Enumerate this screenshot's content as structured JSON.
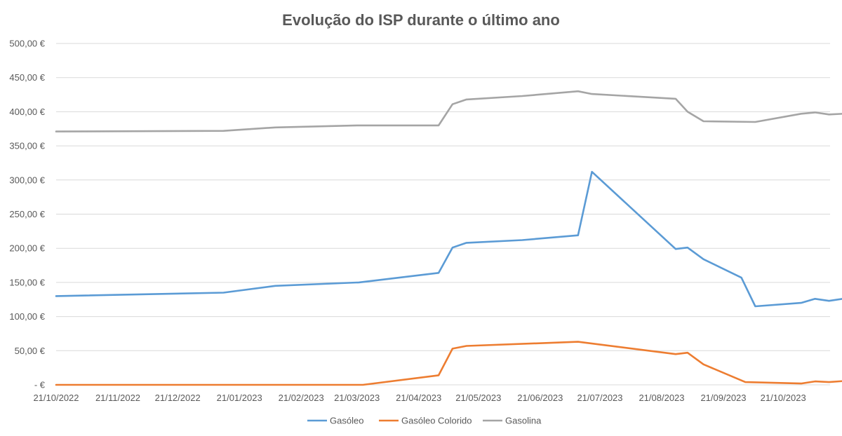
{
  "chart_data": {
    "type": "line",
    "title": "Evolução do ISP durante o último ano",
    "xlabel": "",
    "ylabel": "",
    "x_ticks": [
      "21/10/2022",
      "21/11/2022",
      "21/12/2022",
      "21/01/2023",
      "21/02/2023",
      "21/03/2023",
      "21/04/2023",
      "21/05/2023",
      "21/06/2023",
      "21/07/2023",
      "21/08/2023",
      "21/09/2023",
      "21/10/2023"
    ],
    "x_range": [
      "2022-10-21",
      "2023-11-28"
    ],
    "y_ticks": [
      "-  €",
      "50,00 €",
      "100,00 €",
      "150,00 €",
      "200,00 €",
      "250,00 €",
      "300,00 €",
      "350,00 €",
      "400,00 €",
      "450,00 €",
      "500,00 €"
    ],
    "ylim": [
      0,
      500
    ],
    "grid": true,
    "legend_position": "bottom",
    "series": [
      {
        "name": "Gasóleo",
        "color": "#5b9bd5",
        "points": [
          [
            "2022-10-21",
            130
          ],
          [
            "2023-01-13",
            135
          ],
          [
            "2023-02-08",
            145
          ],
          [
            "2023-03-22",
            150
          ],
          [
            "2023-05-01",
            164
          ],
          [
            "2023-05-08",
            201
          ],
          [
            "2023-05-15",
            208
          ],
          [
            "2023-06-12",
            212
          ],
          [
            "2023-07-10",
            219
          ],
          [
            "2023-07-17",
            312
          ],
          [
            "2023-08-28",
            199
          ],
          [
            "2023-09-03",
            201
          ],
          [
            "2023-09-11",
            184
          ],
          [
            "2023-09-30",
            157
          ],
          [
            "2023-10-07",
            115
          ],
          [
            "2023-10-30",
            120
          ],
          [
            "2023-11-06",
            126
          ],
          [
            "2023-11-13",
            123
          ],
          [
            "2023-11-20",
            126
          ],
          [
            "2023-11-27",
            128
          ],
          [
            "2023-12-04",
            134
          ]
        ]
      },
      {
        "name": "Gasóleo Colorido",
        "color": "#ed7d31",
        "points": [
          [
            "2022-10-21",
            0
          ],
          [
            "2023-03-24",
            0
          ],
          [
            "2023-05-01",
            14
          ],
          [
            "2023-05-08",
            53
          ],
          [
            "2023-05-15",
            57
          ],
          [
            "2023-07-10",
            63
          ],
          [
            "2023-08-28",
            45
          ],
          [
            "2023-09-03",
            47
          ],
          [
            "2023-09-11",
            30
          ],
          [
            "2023-10-02",
            4
          ],
          [
            "2023-10-30",
            2
          ],
          [
            "2023-11-06",
            5
          ],
          [
            "2023-11-13",
            4
          ],
          [
            "2023-11-27",
            7
          ],
          [
            "2023-12-04",
            11
          ]
        ]
      },
      {
        "name": "Gasolina",
        "color": "#a5a5a5",
        "points": [
          [
            "2022-10-21",
            371
          ],
          [
            "2023-01-13",
            372
          ],
          [
            "2023-02-08",
            377
          ],
          [
            "2023-03-22",
            380
          ],
          [
            "2023-05-01",
            380
          ],
          [
            "2023-05-08",
            411
          ],
          [
            "2023-05-15",
            418
          ],
          [
            "2023-06-12",
            423
          ],
          [
            "2023-07-10",
            430
          ],
          [
            "2023-07-17",
            426
          ],
          [
            "2023-08-28",
            419
          ],
          [
            "2023-09-03",
            400
          ],
          [
            "2023-09-11",
            386
          ],
          [
            "2023-10-07",
            385
          ],
          [
            "2023-10-30",
            397
          ],
          [
            "2023-11-06",
            399
          ],
          [
            "2023-11-13",
            396
          ],
          [
            "2023-11-27",
            398
          ],
          [
            "2023-12-04",
            402
          ]
        ]
      }
    ]
  }
}
